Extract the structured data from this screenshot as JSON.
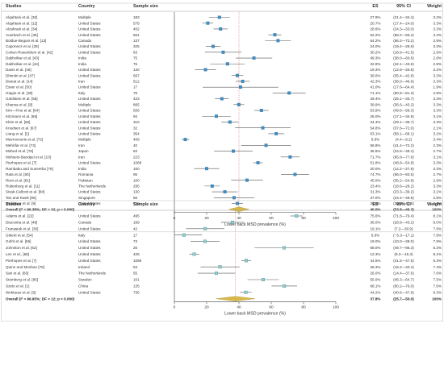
{
  "chart_data": [
    {
      "type": "forest",
      "headers": {
        "studies": "Studies",
        "country": "Country",
        "sample": "Sample size",
        "es": "ES",
        "ci": "95% CI",
        "weight": "Weight"
      },
      "xlabel": "Lower back MSD prevalence (%)",
      "xlim": [
        0,
        100
      ],
      "ticks": [
        "0",
        "20",
        "40",
        "60",
        "80",
        "100"
      ],
      "marker_color": "#3d8fc4",
      "summary_color": "#d9b84a",
      "rows": [
        {
          "study": "Alqahtani et al. [32]",
          "country": "Multiple",
          "n": "183",
          "es": 27.9,
          "lo": 21.4,
          "hi": 34.4,
          "es_text": "27.9%",
          "ci_text": "(21.4—34.4)",
          "w": "3.2%"
        },
        {
          "study": "Alqahtani et al. [12]",
          "country": "United States",
          "n": "578",
          "es": 20.7,
          "lo": 17.4,
          "hi": 24.0,
          "es_text": "20.7%",
          "ci_text": "(17.4—24.0)",
          "w": "3.3%"
        },
        {
          "study": "Alzahrani et al. [34]",
          "country": "United States",
          "n": "402",
          "es": 28.6,
          "lo": 24.3,
          "hi": 33.0,
          "es_text": "28.6%",
          "ci_text": "(24.3—33.0)",
          "w": "3.3%"
        },
        {
          "study": "Auerbach et al. [35]",
          "country": "United States",
          "n": "561",
          "es": 62.2,
          "lo": 58.2,
          "hi": 66.2,
          "es_text": "62.2%",
          "ci_text": "(58.2—66.2)",
          "w": "3.3%"
        },
        {
          "study": "Boldue-Beguin et al. [13]",
          "country": "Canada",
          "n": "137",
          "es": 64.2,
          "lo": 56.2,
          "hi": 72.2,
          "es_text": "64.2%",
          "ci_text": "(56.2—72.2)",
          "w": "2.9%"
        },
        {
          "study": "Caponecs et al. [39]",
          "country": "United States",
          "n": "325",
          "es": 24.0,
          "lo": 19.4,
          "hi": 28.6,
          "es_text": "24.0%",
          "ci_text": "(19.4—28.6)",
          "w": "3.3%"
        },
        {
          "study": "Cohen-Rosenblum et al. [42]",
          "country": "United States",
          "n": "63",
          "es": 30.2,
          "lo": 18.9,
          "hi": 41.5,
          "es_text": "30.2%",
          "ci_text": "(18.9—41.5)",
          "w": "2.9%"
        },
        {
          "study": "Dabholkar et al. [43]",
          "country": "India",
          "n": "75",
          "es": 49.3,
          "lo": 38.0,
          "hi": 60.6,
          "es_text": "49.3%",
          "ci_text": "(38.0—60.6)",
          "w": "2.8%"
        },
        {
          "study": "Dabholkar et al. [44]",
          "country": "India",
          "n": "75",
          "es": 32.9,
          "lo": 22.1,
          "hi": 43.6,
          "es_text": "32.9%",
          "ci_text": "(22.1—43.6)",
          "w": "2.9%"
        },
        {
          "study": "Davis et al. [46]",
          "country": "United States",
          "n": "140",
          "es": 19.3,
          "lo": 12.8,
          "hi": 25.8,
          "es_text": "19.3%",
          "ci_text": "(12.8—25.8)",
          "w": "3.2%"
        },
        {
          "study": "Dhimitri et al. [47]",
          "country": "United States",
          "n": "697",
          "es": 39.0,
          "lo": 35.4,
          "hi": 42.6,
          "es_text": "39.0%",
          "ci_text": "(35.4—42.6)",
          "w": "3.3%"
        },
        {
          "study": "Dianat et al. [14]",
          "country": "Iran",
          "n": "512",
          "es": 42.3,
          "lo": 38.0,
          "hi": 46.6,
          "es_text": "42.3%",
          "ci_text": "(38.0—46.6)",
          "w": "3.3%"
        },
        {
          "study": "Esser et al. [50]",
          "country": "United States",
          "n": "17",
          "es": 41.0,
          "lo": 17.6,
          "hi": 64.4,
          "es_text": "41.0%",
          "ci_text": "(17.6—64.4)",
          "w": "1.9%"
        },
        {
          "study": "Giagio et al. [30]",
          "country": "Italy",
          "n": "76",
          "es": 71.1,
          "lo": 60.9,
          "hi": 81.3,
          "es_text": "71.1%",
          "ci_text": "(60.9—81.3)",
          "w": "2.8%"
        },
        {
          "study": "Goldstein et al. [56]",
          "country": "United States",
          "n": "423",
          "es": 29.4,
          "lo": 25.1,
          "hi": 33.7,
          "es_text": "29.4%",
          "ci_text": "(25.1—33.7)",
          "w": "3.3%"
        },
        {
          "study": "Khansa et al. [8]",
          "country": "Multiple",
          "n": "865",
          "es": 39.9,
          "lo": 36.6,
          "hi": 43.2,
          "es_text": "39.9%",
          "ci_text": "(36.6—43.2)",
          "w": "3.3%"
        },
        {
          "study": "Kim—Fine et al. [64]",
          "country": "United States",
          "n": "506",
          "es": 53.9,
          "lo": 49.6,
          "hi": 58.3,
          "es_text": "53.9%",
          "ci_text": "(49.6—58.3)",
          "w": "3.3%"
        },
        {
          "study": "Kitzmann et al. [65]",
          "country": "United States",
          "n": "94",
          "es": 26.0,
          "lo": 17.1,
          "hi": 34.9,
          "es_text": "26.0%",
          "ci_text": "(17.1—34.9)",
          "w": "3.1%"
        },
        {
          "study": "Klein et al. [66]",
          "country": "United States",
          "n": "310",
          "es": 34.4,
          "lo": 29.1,
          "hi": 39.7,
          "es_text": "34.4%",
          "ci_text": "(29.1—39.7)",
          "w": "3.3%"
        },
        {
          "study": "Knudsen et al. [67]",
          "country": "United States",
          "n": "32",
          "es": 54.8,
          "lo": 37.6,
          "hi": 72.0,
          "es_text": "54.8%",
          "ci_text": "(37.6—72.0)",
          "w": "2.1%"
        },
        {
          "study": "Liang et al. [2]",
          "country": "United States",
          "n": "354",
          "es": 63.1,
          "lo": 58.1,
          "hi": 68.1,
          "es_text": "63.1%",
          "ci_text": "(58.1—68.1)",
          "w": "3.2%"
        },
        {
          "study": "Mavrovounis et al. [72]",
          "country": "Multiple",
          "n": "409",
          "es": 6.8,
          "lo": 4.4,
          "hi": 9.2,
          "es_text": "6.8%",
          "ci_text": "(4.4—9.2)",
          "w": "3.4%"
        },
        {
          "study": "Mehrifar et al. [73]",
          "country": "Iran",
          "n": "40",
          "es": 56.8,
          "lo": 41.4,
          "hi": 72.2,
          "es_text": "56.8%",
          "ci_text": "(41.4—72.2)",
          "w": "2.3%"
        },
        {
          "study": "Mirbod et al. [75]",
          "country": "Japan",
          "n": "63",
          "es": 36.5,
          "lo": 24.6,
          "hi": 48.4,
          "es_text": "36.5%",
          "ci_text": "(24.6—48.4)",
          "w": "2.7%"
        },
        {
          "study": "Mohseni-Bandpei et al. [10]",
          "country": "Iran",
          "n": "223",
          "es": 71.7,
          "lo": 65.8,
          "hi": 77.6,
          "es_text": "71.7%",
          "ci_text": "(65.8—77.6)",
          "w": "3.1%"
        },
        {
          "study": "Pierhopes et al. [7]",
          "country": "United States",
          "n": "1068",
          "es": 51.8,
          "lo": 48.8,
          "hi": 54.8,
          "es_text": "51.8%",
          "ci_text": "(48.8—54.8)",
          "w": "3.3%"
        },
        {
          "study": "Rambabu and Suneetha [79]",
          "country": "India",
          "n": "100",
          "es": 20.0,
          "lo": 12.2,
          "hi": 27.8,
          "es_text": "20.0%",
          "ci_text": "(12.2—27.8)",
          "w": "3.2%"
        },
        {
          "study": "Rata et al. [80]",
          "country": "Romania",
          "n": "95",
          "es": 74.7,
          "lo": 66.0,
          "hi": 83.5,
          "es_text": "74.7%",
          "ci_text": "(66.0—83.5)",
          "w": "2.7%"
        },
        {
          "study": "Rizvi et al. [81]",
          "country": "Pakistan",
          "n": "100",
          "es": 45.0,
          "lo": 35.2,
          "hi": 54.8,
          "es_text": "45.0%",
          "ci_text": "(35.2—54.8)",
          "w": "2.9%"
        },
        {
          "study": "Ruitenburg et al. [11]",
          "country": "The Netherlands",
          "n": "295",
          "es": 23.4,
          "lo": 18.6,
          "hi": 28.2,
          "es_text": "23.4%",
          "ci_text": "(18.6—28.2)",
          "w": "3.3%"
        },
        {
          "study": "Sivak-Callcott et al. [84]",
          "country": "United States",
          "n": "130",
          "es": 31.3,
          "lo": 23.3,
          "hi": 39.2,
          "es_text": "31.3%",
          "ci_text": "(23.3—39.2)",
          "w": "3.1%"
        },
        {
          "study": "Tan and Kwek [86]",
          "country": "Singapore",
          "n": "56",
          "es": 37.0,
          "lo": 24.4,
          "hi": 49.6,
          "es_text": "37.0%",
          "ci_text": "(24.4—49.6)",
          "w": "2.8%"
        },
        {
          "study": "Wohlauer et al. [9]",
          "country": "United States",
          "n": "736",
          "es": 39.0,
          "lo": 35.5,
          "hi": 42.5,
          "es_text": "39.0%",
          "ci_text": "(35.5—42.5)",
          "w": "3.3%"
        }
      ],
      "overall": {
        "label": "Overall (I² = 96.38%; DF = 32; p = 0.000)",
        "es": 40.0,
        "lo": 33.8,
        "hi": 46.3,
        "es_text": "40.0%",
        "ci_text": "(33.8—46.3)",
        "w": "100%"
      }
    },
    {
      "type": "forest",
      "headers": {
        "studies": "Studies",
        "country": "Country",
        "sample": "Sample size",
        "es": "ES",
        "ci": "95% CI",
        "weight": "Weight"
      },
      "xlabel": "Lower back MSD prevalence (%)",
      "xlim": [
        0,
        100
      ],
      "ticks": [
        "0",
        "20",
        "40",
        "60",
        "80",
        "100"
      ],
      "marker_color": "#8fd4c4",
      "summary_color": "#d9b84a",
      "rows": [
        {
          "study": "Adams et al. [22]",
          "country": "United States",
          "n": "495",
          "es": 75.6,
          "lo": 71.8,
          "hi": 79.4,
          "es_text": "75.6%",
          "ci_text": "(71.8—79.4)",
          "w": "8.1%"
        },
        {
          "study": "Diaconita et al. [48]",
          "country": "Canada",
          "n": "169",
          "es": 36.0,
          "lo": 28.8,
          "hi": 43.2,
          "es_text": "36.0%",
          "ci_text": "(28.8—43.2)",
          "w": "8.0%"
        },
        {
          "study": "Franasiak et al. [30]",
          "country": "United States",
          "n": "42",
          "es": 19.1,
          "lo": 7.2,
          "hi": 30.9,
          "es_text": "19.1%",
          "ci_text": "(7.2—30.9)",
          "w": "7.6%"
        },
        {
          "study": "Giberti et al. [54]",
          "country": "Italy",
          "n": "17",
          "es": 5.9,
          "lo": -5.3,
          "hi": 17.1,
          "es_text": "5.9%",
          "ci_text": "(−5.3—17.1)",
          "w": "7.8%"
        },
        {
          "study": "Gofrit et al. [55]",
          "country": "United States",
          "n": "73",
          "es": 19.0,
          "lo": 10.0,
          "hi": 28.0,
          "es_text": "19.0%",
          "ci_text": "(10.0—28.0)",
          "w": "7.9%"
        },
        {
          "study": "Johnston et al. [62]",
          "country": "United States",
          "n": "25",
          "es": 68.0,
          "lo": 49.7,
          "hi": 86.3,
          "es_text": "68.0%",
          "ci_text": "(49.7—86.3)",
          "w": "5.3%"
        },
        {
          "study": "Lee et al., [68]",
          "country": "United States",
          "n": "428",
          "es": 12.3,
          "lo": 9.2,
          "hi": 15.4,
          "es_text": "12.3%",
          "ci_text": "(9.2—15.4)",
          "w": "8.1%"
        },
        {
          "study": "Pierhopes et al. [7]",
          "country": "United States",
          "n": "1086",
          "es": 44.5,
          "lo": 41.5,
          "hi": 47.5,
          "es_text": "44.5%",
          "ci_text": "(41.5—47.5)",
          "w": "8.3%"
        },
        {
          "study": "Quinn and Moohan [78]",
          "country": "Ireland",
          "n": "53",
          "es": 28.3,
          "lo": 16.2,
          "hi": 40.4,
          "es_text": "28.3%",
          "ci_text": "(16.2—40.4)",
          "w": "7.4%"
        },
        {
          "study": "Sari et al. [83]",
          "country": "The Netherlands",
          "n": "55",
          "es": 26.0,
          "lo": 14.4,
          "hi": 37.6,
          "es_text": "26.0%",
          "ci_text": "(14.4—37.6)",
          "w": "7.6%"
        },
        {
          "study": "Stomberg et al. [85]",
          "country": "Sweden",
          "n": "101",
          "es": 55.0,
          "lo": 45.3,
          "hi": 64.7,
          "es_text": "55.0%",
          "ci_text": "(45.3—64.7)",
          "w": "7.5%"
        },
        {
          "study": "Szeto et al. [1]",
          "country": "China",
          "n": "135",
          "es": 68.1,
          "lo": 60.2,
          "hi": 76.0,
          "es_text": "68.1%",
          "ci_text": "(60.2—76.0)",
          "w": "7.6%"
        },
        {
          "study": "Wohlauer et al. [9]",
          "country": "United States",
          "n": "736",
          "es": 44.2,
          "lo": 40.6,
          "hi": 47.8,
          "es_text": "44.2%",
          "ci_text": "(40.6—47.8)",
          "w": "8.3%"
        }
      ],
      "overall": {
        "label": "Overall (I² = 96.95%; DF = 12; p = 0.000)",
        "es": 37.8,
        "lo": 25.7,
        "hi": 50.0,
        "es_text": "37.8%",
        "ci_text": "(25.7—50.0)",
        "w": "100%"
      }
    }
  ]
}
